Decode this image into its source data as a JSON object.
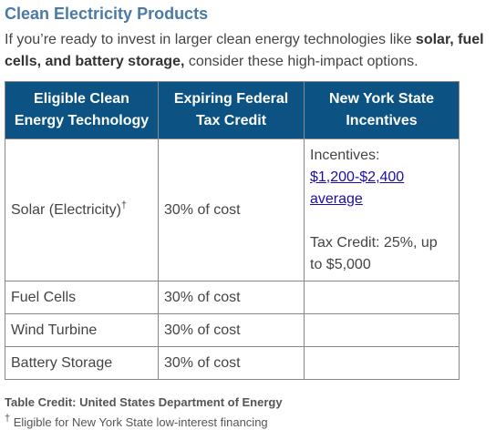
{
  "section": {
    "title": "Clean Electricity Products",
    "intro_before": "If you’re ready to invest in larger clean energy technologies like ",
    "intro_bold": "solar, fuel cells, and battery storage,",
    "intro_after": " consider these high-impact options."
  },
  "table": {
    "headers": [
      "Eligible Clean Energy Technology",
      "Expiring Federal Tax Credit",
      "New York State Incentives"
    ],
    "rows": [
      {
        "technology": "Solar (Electricity)",
        "technology_mark": "†",
        "tax_credit": "30% of cost",
        "incentives_label": "Incentives:",
        "incentives_link": "$1,200-$2,400 average",
        "incentives_tax": "Tax Credit: 25%, up to $5,000"
      },
      {
        "technology": "Fuel Cells",
        "tax_credit": "30% of cost"
      },
      {
        "technology": "Wind Turbine",
        "tax_credit": "30% of cost"
      },
      {
        "technology": "Battery Storage",
        "tax_credit": "30% of cost"
      }
    ]
  },
  "credit": "Table Credit: United States Department of Energy",
  "footnote": {
    "mark": "†",
    "text": " Eligible for New York State low-interest financing"
  }
}
